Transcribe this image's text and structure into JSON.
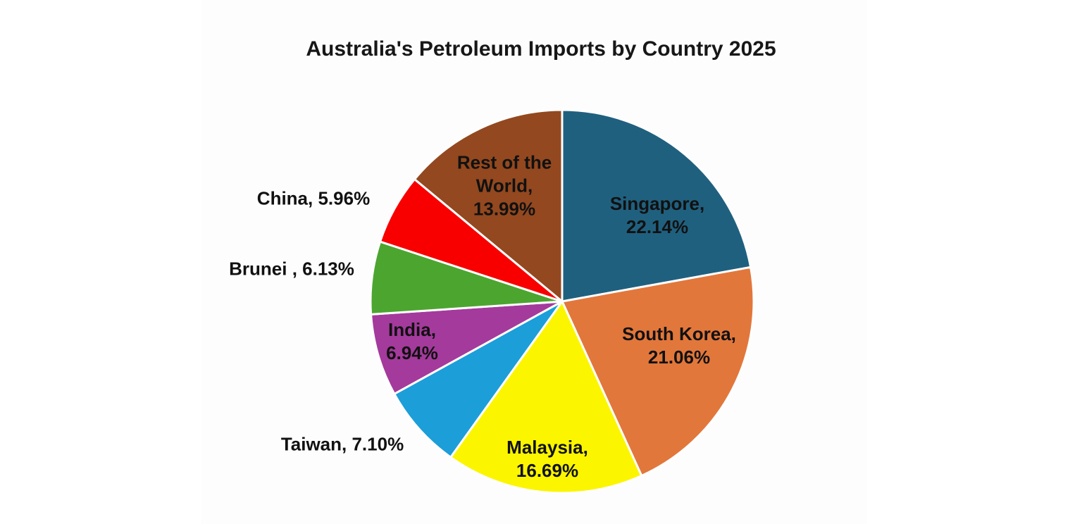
{
  "chart": {
    "title": "Australia's Petroleum Imports by Country 2025"
  },
  "chart_data": {
    "type": "pie",
    "title": "Australia's Petroleum Imports by Country 2025",
    "unit": "%",
    "start_angle_deg": 0,
    "direction": "clockwise",
    "legend": "none",
    "label_format": "name, percent",
    "slices": [
      {
        "label": "Singapore",
        "value": 22.14,
        "display": "Singapore, 22.14%",
        "color": "#20607F",
        "label_lines": [
          "Singapore,",
          "22.14%"
        ],
        "label_placement": "inside"
      },
      {
        "label": "South Korea",
        "value": 21.06,
        "display": "South Korea, 21.06%",
        "color": "#E2773B",
        "label_lines": [
          "South Korea,",
          "21.06%"
        ],
        "label_placement": "inside"
      },
      {
        "label": "Malaysia",
        "value": 16.69,
        "display": "Malaysia, 16.69%",
        "color": "#FCF500",
        "label_lines": [
          "Malaysia,",
          "16.69%"
        ],
        "label_placement": "inside"
      },
      {
        "label": "Taiwan",
        "value": 7.1,
        "display": "Taiwan, 7.10%",
        "color": "#1C9ED9",
        "label_lines": [
          "Taiwan, 7.10%"
        ],
        "label_placement": "outside"
      },
      {
        "label": "India",
        "value": 6.94,
        "display": "India, 6.94%",
        "color": "#A43A9C",
        "label_lines": [
          "India,",
          "6.94%"
        ],
        "label_placement": "inside"
      },
      {
        "label": "Brunei",
        "value": 6.13,
        "display": "Brunei , 6.13%",
        "color": "#4CA52F",
        "label_lines": [
          "Brunei , 6.13%"
        ],
        "label_placement": "outside"
      },
      {
        "label": "China",
        "value": 5.96,
        "display": "China, 5.96%",
        "color": "#F90000",
        "label_lines": [
          "China, 5.96%"
        ],
        "label_placement": "outside"
      },
      {
        "label": "Rest of the World",
        "value": 13.99,
        "display": "Rest of the World, 13.99%",
        "color": "#93481F",
        "label_lines": [
          "Rest of the",
          "World,",
          "13.99%"
        ],
        "label_placement": "inside"
      }
    ],
    "colors": {
      "background": "#FFFFFF",
      "slice_border": "#FFFFFF",
      "text": "#111111"
    }
  }
}
